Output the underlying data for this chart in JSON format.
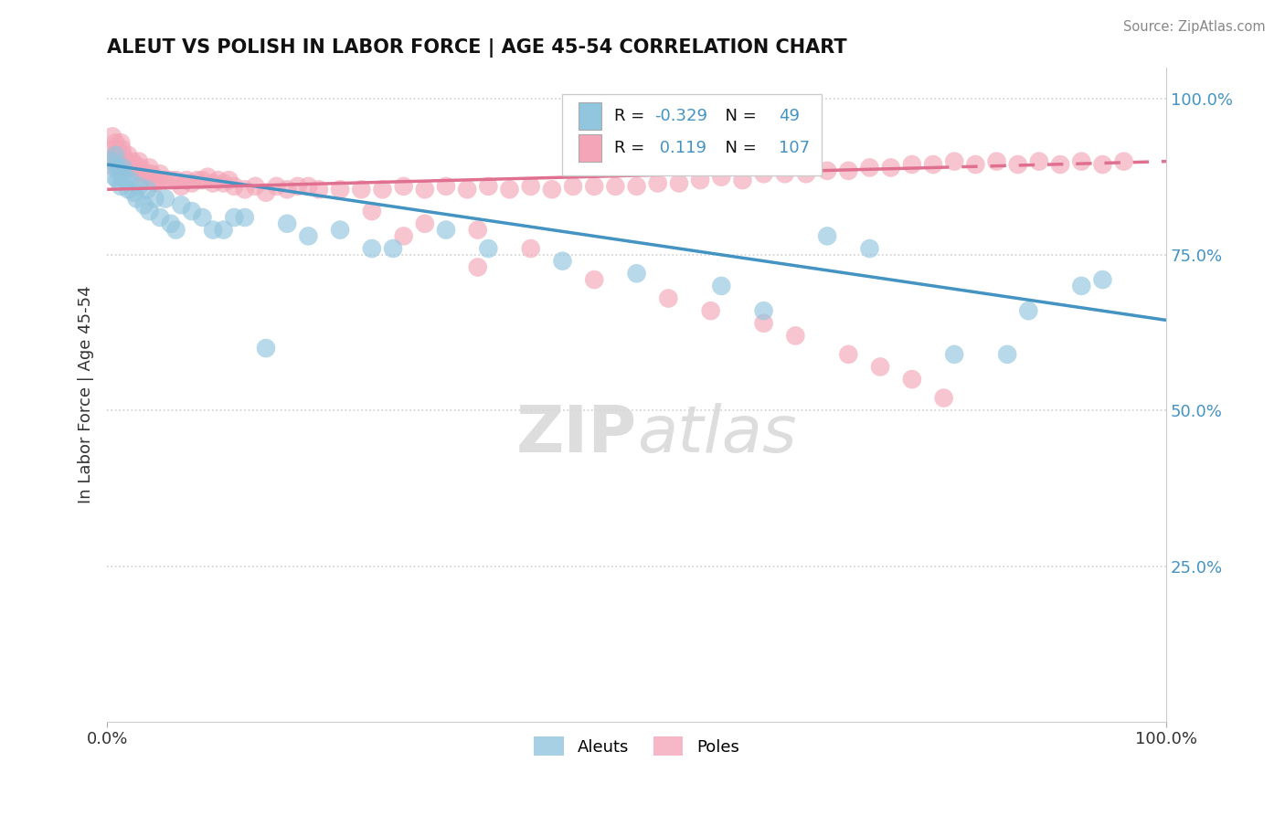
{
  "title": "ALEUT VS POLISH IN LABOR FORCE | AGE 45-54 CORRELATION CHART",
  "source_text": "Source: ZipAtlas.com",
  "ylabel": "In Labor Force | Age 45-54",
  "xlim": [
    0.0,
    1.0
  ],
  "ylim": [
    0.0,
    1.05
  ],
  "y_ticks_right": [
    0.25,
    0.5,
    0.75,
    1.0
  ],
  "y_tick_labels_right": [
    "25.0%",
    "50.0%",
    "75.0%",
    "100.0%"
  ],
  "aleut_R": -0.329,
  "aleut_N": 49,
  "pole_R": 0.119,
  "pole_N": 107,
  "aleut_color": "#92c5de",
  "pole_color": "#f4a6b8",
  "aleut_line_color": "#4393c3",
  "pole_line_color": "#e07090",
  "background_color": "#ffffff",
  "grid_color": "#d0d0d0",
  "aleut_trend_x0": 0.0,
  "aleut_trend_y0": 0.895,
  "aleut_trend_x1": 1.0,
  "aleut_trend_y1": 0.645,
  "pole_trend_x0": 0.0,
  "pole_trend_y0": 0.855,
  "pole_trend_x1": 0.78,
  "pole_trend_y1": 0.89,
  "pole_trend_dash_x0": 0.78,
  "pole_trend_dash_y0": 0.89,
  "pole_trend_dash_x1": 1.0,
  "pole_trend_dash_y1": 0.9,
  "aleut_x": [
    0.005,
    0.007,
    0.008,
    0.009,
    0.01,
    0.012,
    0.013,
    0.014,
    0.015,
    0.018,
    0.02,
    0.022,
    0.025,
    0.028,
    0.03,
    0.035,
    0.038,
    0.04,
    0.045,
    0.05,
    0.055,
    0.06,
    0.065,
    0.07,
    0.08,
    0.09,
    0.1,
    0.11,
    0.12,
    0.13,
    0.15,
    0.17,
    0.19,
    0.22,
    0.25,
    0.27,
    0.32,
    0.36,
    0.43,
    0.5,
    0.58,
    0.62,
    0.68,
    0.72,
    0.8,
    0.85,
    0.87,
    0.92,
    0.94
  ],
  "aleut_y": [
    0.9,
    0.875,
    0.91,
    0.89,
    0.87,
    0.885,
    0.86,
    0.875,
    0.89,
    0.87,
    0.855,
    0.87,
    0.85,
    0.84,
    0.86,
    0.83,
    0.855,
    0.82,
    0.84,
    0.81,
    0.84,
    0.8,
    0.79,
    0.83,
    0.82,
    0.81,
    0.79,
    0.79,
    0.81,
    0.81,
    0.6,
    0.8,
    0.78,
    0.79,
    0.76,
    0.76,
    0.79,
    0.76,
    0.74,
    0.72,
    0.7,
    0.66,
    0.78,
    0.76,
    0.59,
    0.59,
    0.66,
    0.7,
    0.71
  ],
  "pole_x": [
    0.005,
    0.006,
    0.007,
    0.007,
    0.008,
    0.009,
    0.01,
    0.011,
    0.012,
    0.013,
    0.014,
    0.015,
    0.016,
    0.017,
    0.018,
    0.019,
    0.02,
    0.022,
    0.024,
    0.026,
    0.028,
    0.03,
    0.032,
    0.034,
    0.036,
    0.038,
    0.04,
    0.042,
    0.044,
    0.046,
    0.048,
    0.05,
    0.055,
    0.06,
    0.065,
    0.07,
    0.075,
    0.08,
    0.085,
    0.09,
    0.095,
    0.1,
    0.105,
    0.11,
    0.115,
    0.12,
    0.13,
    0.14,
    0.15,
    0.16,
    0.17,
    0.18,
    0.19,
    0.2,
    0.22,
    0.24,
    0.26,
    0.28,
    0.3,
    0.32,
    0.34,
    0.36,
    0.38,
    0.4,
    0.42,
    0.44,
    0.46,
    0.48,
    0.5,
    0.52,
    0.54,
    0.56,
    0.58,
    0.6,
    0.62,
    0.64,
    0.66,
    0.68,
    0.7,
    0.72,
    0.74,
    0.76,
    0.78,
    0.8,
    0.82,
    0.84,
    0.86,
    0.88,
    0.9,
    0.92,
    0.94,
    0.96,
    0.25,
    0.3,
    0.35,
    0.28,
    0.4,
    0.35,
    0.46,
    0.53,
    0.57,
    0.62,
    0.65,
    0.7,
    0.73,
    0.76,
    0.79
  ],
  "pole_y": [
    0.94,
    0.92,
    0.91,
    0.89,
    0.93,
    0.9,
    0.92,
    0.91,
    0.9,
    0.93,
    0.92,
    0.91,
    0.895,
    0.9,
    0.89,
    0.9,
    0.91,
    0.89,
    0.9,
    0.895,
    0.885,
    0.9,
    0.89,
    0.88,
    0.87,
    0.88,
    0.89,
    0.88,
    0.87,
    0.865,
    0.87,
    0.88,
    0.87,
    0.87,
    0.87,
    0.86,
    0.87,
    0.865,
    0.87,
    0.87,
    0.875,
    0.865,
    0.87,
    0.865,
    0.87,
    0.86,
    0.855,
    0.86,
    0.85,
    0.86,
    0.855,
    0.86,
    0.86,
    0.855,
    0.855,
    0.855,
    0.855,
    0.86,
    0.855,
    0.86,
    0.855,
    0.86,
    0.855,
    0.86,
    0.855,
    0.86,
    0.86,
    0.86,
    0.86,
    0.865,
    0.865,
    0.87,
    0.875,
    0.87,
    0.88,
    0.88,
    0.88,
    0.885,
    0.885,
    0.89,
    0.89,
    0.895,
    0.895,
    0.9,
    0.895,
    0.9,
    0.895,
    0.9,
    0.895,
    0.9,
    0.895,
    0.9,
    0.82,
    0.8,
    0.79,
    0.78,
    0.76,
    0.73,
    0.71,
    0.68,
    0.66,
    0.64,
    0.62,
    0.59,
    0.57,
    0.55,
    0.52
  ]
}
